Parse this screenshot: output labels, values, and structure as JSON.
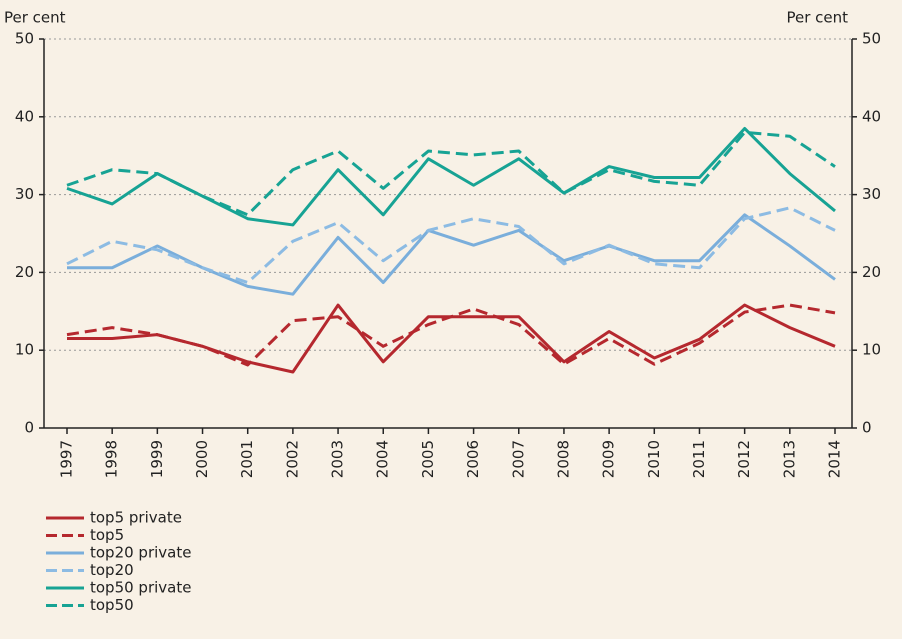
{
  "chart_data": {
    "type": "line",
    "ylabel": "Per cent",
    "y2label": "Per cent",
    "categories": [
      "1997",
      "1998",
      "1999",
      "2000",
      "2001",
      "2002",
      "2003",
      "2004",
      "2005",
      "2006",
      "2007",
      "2008",
      "2009",
      "2010",
      "2011",
      "2012",
      "2013",
      "2014"
    ],
    "series": [
      {
        "name": "top5 private",
        "color": "#b5282e",
        "dashed": false,
        "values": [
          11.5,
          11.5,
          12,
          10.5,
          8.5,
          7.2,
          15.8,
          8.5,
          14.3,
          14.3,
          14.3,
          8.5,
          12.4,
          9,
          11.4,
          15.8,
          12.9,
          10.5
        ]
      },
      {
        "name": "top5",
        "color": "#b5282e",
        "dashed": true,
        "values": [
          12,
          12.9,
          12,
          10.5,
          8.1,
          13.8,
          14.3,
          10.5,
          13.3,
          15.3,
          13.3,
          8.2,
          11.5,
          8.2,
          10.9,
          14.9,
          15.8,
          14.8
        ]
      },
      {
        "name": "top20 private",
        "color": "#7aaedb",
        "dashed": false,
        "values": [
          20.6,
          20.6,
          23.4,
          20.6,
          18.2,
          17.2,
          24.5,
          18.7,
          25.4,
          23.5,
          25.4,
          21.5,
          23.4,
          21.5,
          21.5,
          27.4,
          23.4,
          19.1
        ]
      },
      {
        "name": "top20",
        "color": "#8cbbe3",
        "dashed": true,
        "values": [
          21.1,
          24,
          22.9,
          20.6,
          18.7,
          24,
          26.4,
          21.5,
          25.4,
          26.9,
          25.9,
          21.1,
          23.5,
          21.1,
          20.6,
          26.9,
          28.3,
          25.4
        ]
      },
      {
        "name": "top50 private",
        "color": "#17a394",
        "dashed": false,
        "values": [
          30.8,
          28.8,
          32.7,
          29.8,
          26.9,
          26.1,
          33.2,
          27.4,
          34.6,
          31.2,
          34.6,
          30.2,
          33.6,
          32.2,
          32.2,
          38.5,
          32.7,
          27.9
        ]
      },
      {
        "name": "top50",
        "color": "#17a394",
        "dashed": true,
        "values": [
          31.2,
          33.2,
          32.7,
          29.8,
          27.4,
          33.2,
          35.6,
          30.8,
          35.6,
          35.1,
          35.6,
          30.2,
          33.2,
          31.7,
          31.2,
          38,
          37.5,
          33.6
        ]
      }
    ],
    "ylim": [
      0,
      50
    ],
    "yticks": [
      0,
      10,
      20,
      30,
      40,
      50
    ],
    "y2lim": [
      0,
      50
    ],
    "y2ticks": [
      0,
      10,
      20,
      30,
      40,
      50
    ],
    "grid": true,
    "legend": "bottom-left"
  }
}
